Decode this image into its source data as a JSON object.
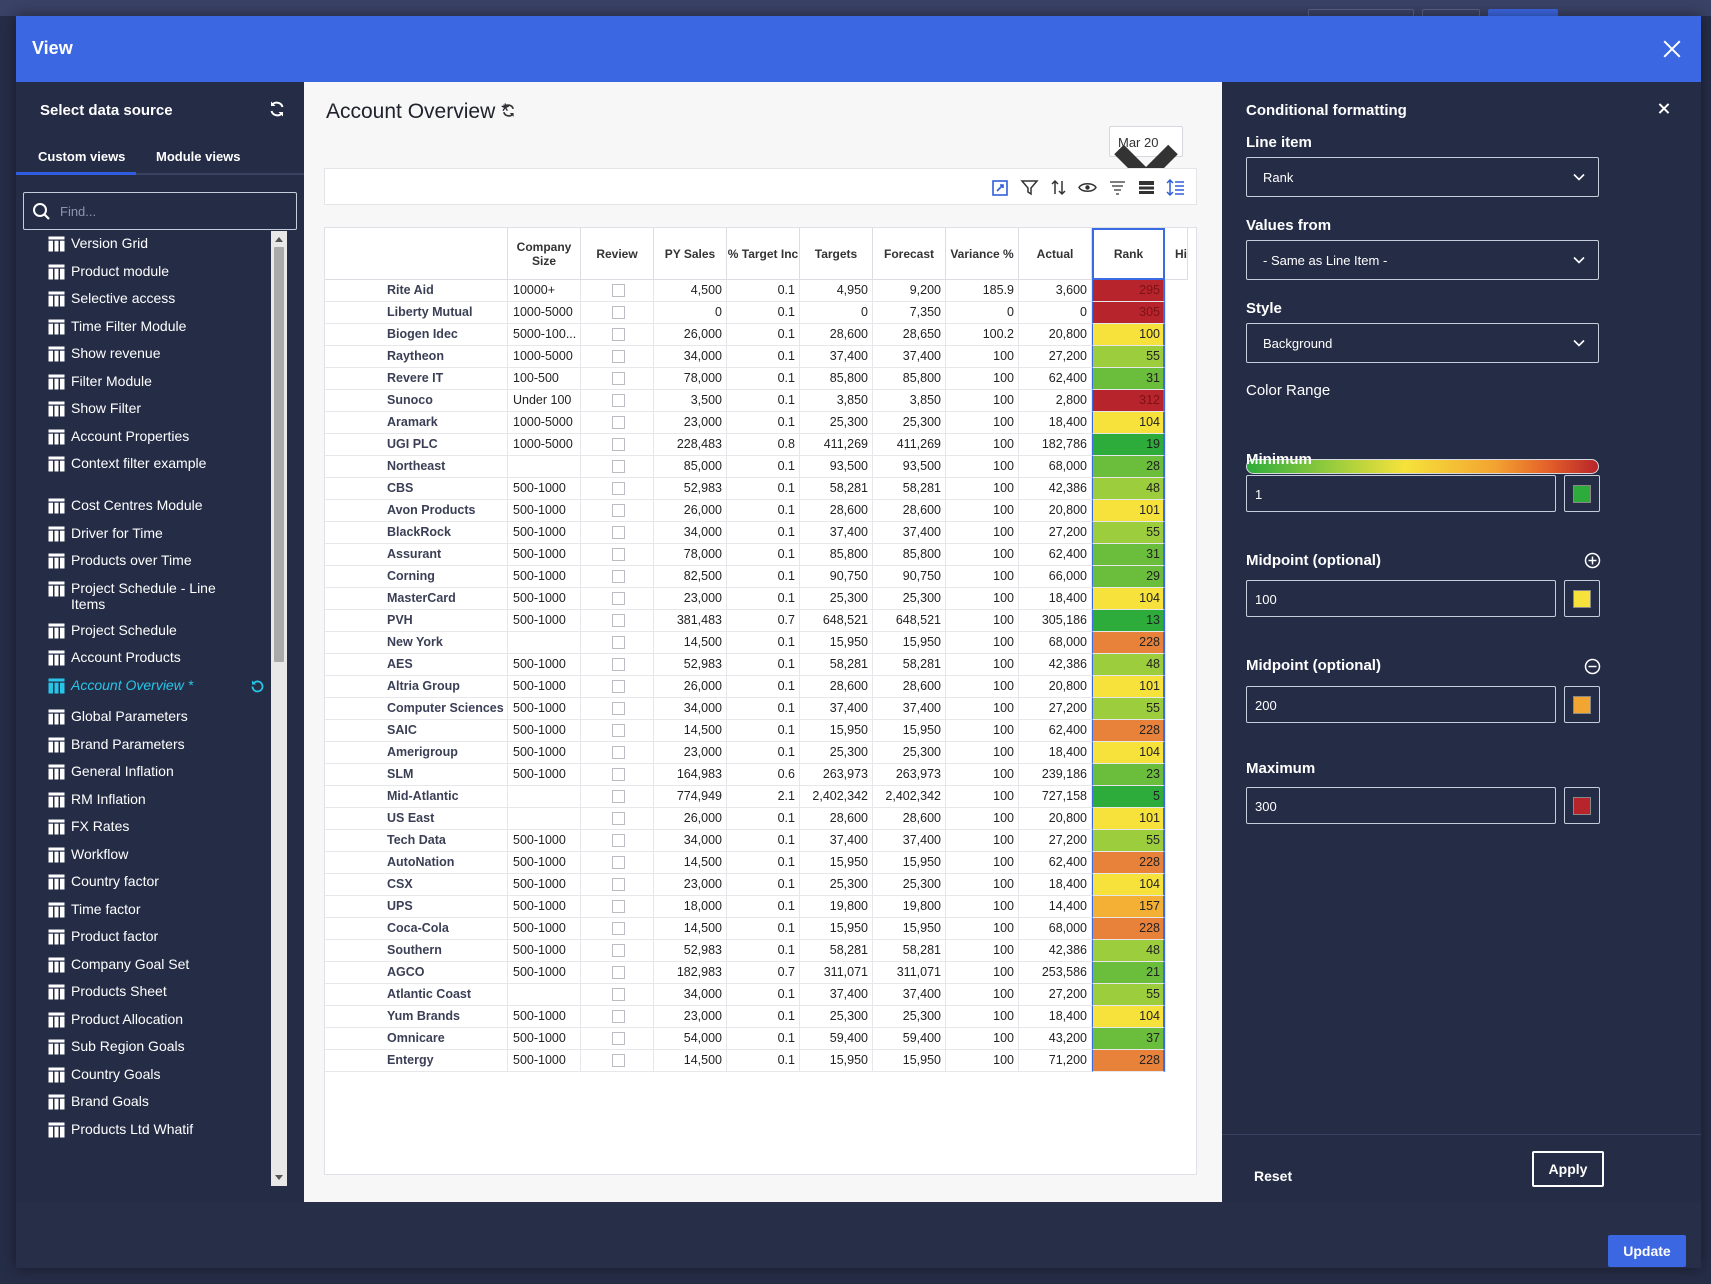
{
  "dialog": {
    "title": "View",
    "update_label": "Update"
  },
  "left": {
    "title": "Select data source",
    "tabs": [
      "Custom views",
      "Module views"
    ],
    "search_placeholder": "Find...",
    "items": [
      "Version Grid",
      "Product module",
      "Selective access",
      "Time Filter Module",
      "Show revenue",
      "Filter Module",
      "Show Filter",
      "Account Properties",
      "Context filter example",
      "Cost Centres Module",
      "Driver for Time",
      "Products over Time",
      "Project Schedule - Line Items",
      "Project Schedule",
      "Account Products",
      "Account Overview *",
      "Global Parameters",
      "Brand Parameters",
      "General Inflation",
      "RM Inflation",
      "FX Rates",
      "Workflow",
      "Country factor",
      "Time factor",
      "Product factor",
      "Company Goal Set",
      "Products Sheet",
      "Product Allocation",
      "Sub Region Goals",
      "Country Goals",
      "Brand Goals",
      "Products Ltd Whatif"
    ],
    "active_index": 15
  },
  "center": {
    "title": "Account Overview *",
    "date": "Mar 20",
    "columns": [
      "Company Size",
      "Review",
      "PY Sales",
      "% Target Inc",
      "Targets",
      "Forecast",
      "Variance %",
      "Actual",
      "Rank",
      "Hi"
    ],
    "rows": [
      [
        "Rite Aid",
        "10000+",
        "4,500",
        "0.1",
        "4,950",
        "9,200",
        "185.9",
        "3,600",
        "295"
      ],
      [
        "Liberty Mutual",
        "1000-5000",
        "0",
        "0.1",
        "0",
        "7,350",
        "0",
        "0",
        "305"
      ],
      [
        "Biogen Idec",
        "5000-100...",
        "26,000",
        "0.1",
        "28,600",
        "28,650",
        "100.2",
        "20,800",
        "100"
      ],
      [
        "Raytheon",
        "1000-5000",
        "34,000",
        "0.1",
        "37,400",
        "37,400",
        "100",
        "27,200",
        "55"
      ],
      [
        "Revere IT",
        "100-500",
        "78,000",
        "0.1",
        "85,800",
        "85,800",
        "100",
        "62,400",
        "31"
      ],
      [
        "Sunoco",
        "Under 100",
        "3,500",
        "0.1",
        "3,850",
        "3,850",
        "100",
        "2,800",
        "312"
      ],
      [
        "Aramark",
        "1000-5000",
        "23,000",
        "0.1",
        "25,300",
        "25,300",
        "100",
        "18,400",
        "104"
      ],
      [
        "UGI PLC",
        "1000-5000",
        "228,483",
        "0.8",
        "411,269",
        "411,269",
        "100",
        "182,786",
        "19"
      ],
      [
        "Northeast",
        "",
        "85,000",
        "0.1",
        "93,500",
        "93,500",
        "100",
        "68,000",
        "28"
      ],
      [
        "CBS",
        "500-1000",
        "52,983",
        "0.1",
        "58,281",
        "58,281",
        "100",
        "42,386",
        "48"
      ],
      [
        "Avon Products",
        "500-1000",
        "26,000",
        "0.1",
        "28,600",
        "28,600",
        "100",
        "20,800",
        "101"
      ],
      [
        "BlackRock",
        "500-1000",
        "34,000",
        "0.1",
        "37,400",
        "37,400",
        "100",
        "27,200",
        "55"
      ],
      [
        "Assurant",
        "500-1000",
        "78,000",
        "0.1",
        "85,800",
        "85,800",
        "100",
        "62,400",
        "31"
      ],
      [
        "Corning",
        "500-1000",
        "82,500",
        "0.1",
        "90,750",
        "90,750",
        "100",
        "66,000",
        "29"
      ],
      [
        "MasterCard",
        "500-1000",
        "23,000",
        "0.1",
        "25,300",
        "25,300",
        "100",
        "18,400",
        "104"
      ],
      [
        "PVH",
        "500-1000",
        "381,483",
        "0.7",
        "648,521",
        "648,521",
        "100",
        "305,186",
        "13"
      ],
      [
        "New York",
        "",
        "14,500",
        "0.1",
        "15,950",
        "15,950",
        "100",
        "68,000",
        "228"
      ],
      [
        "AES",
        "500-1000",
        "52,983",
        "0.1",
        "58,281",
        "58,281",
        "100",
        "42,386",
        "48"
      ],
      [
        "Altria Group",
        "500-1000",
        "26,000",
        "0.1",
        "28,600",
        "28,600",
        "100",
        "20,800",
        "101"
      ],
      [
        "Computer Sciences Ltd",
        "500-1000",
        "34,000",
        "0.1",
        "37,400",
        "37,400",
        "100",
        "27,200",
        "55"
      ],
      [
        "SAIC",
        "500-1000",
        "14,500",
        "0.1",
        "15,950",
        "15,950",
        "100",
        "62,400",
        "228"
      ],
      [
        "Amerigroup",
        "500-1000",
        "23,000",
        "0.1",
        "25,300",
        "25,300",
        "100",
        "18,400",
        "104"
      ],
      [
        "SLM",
        "500-1000",
        "164,983",
        "0.6",
        "263,973",
        "263,973",
        "100",
        "239,186",
        "23"
      ],
      [
        "Mid-Atlantic",
        "",
        "774,949",
        "2.1",
        "2,402,342",
        "2,402,342",
        "100",
        "727,158",
        "5"
      ],
      [
        "US East",
        "",
        "26,000",
        "0.1",
        "28,600",
        "28,600",
        "100",
        "20,800",
        "101"
      ],
      [
        "Tech Data",
        "500-1000",
        "34,000",
        "0.1",
        "37,400",
        "37,400",
        "100",
        "27,200",
        "55"
      ],
      [
        "AutoNation",
        "500-1000",
        "14,500",
        "0.1",
        "15,950",
        "15,950",
        "100",
        "62,400",
        "228"
      ],
      [
        "CSX",
        "500-1000",
        "23,000",
        "0.1",
        "25,300",
        "25,300",
        "100",
        "18,400",
        "104"
      ],
      [
        "UPS",
        "500-1000",
        "18,000",
        "0.1",
        "19,800",
        "19,800",
        "100",
        "14,400",
        "157"
      ],
      [
        "Coca-Cola",
        "500-1000",
        "14,500",
        "0.1",
        "15,950",
        "15,950",
        "100",
        "68,000",
        "228"
      ],
      [
        "Southern",
        "500-1000",
        "52,983",
        "0.1",
        "58,281",
        "58,281",
        "100",
        "42,386",
        "48"
      ],
      [
        "AGCO",
        "500-1000",
        "182,983",
        "0.7",
        "311,071",
        "311,071",
        "100",
        "253,586",
        "21"
      ],
      [
        "Atlantic Coast",
        "",
        "34,000",
        "0.1",
        "37,400",
        "37,400",
        "100",
        "27,200",
        "55"
      ],
      [
        "Yum Brands",
        "500-1000",
        "23,000",
        "0.1",
        "25,300",
        "25,300",
        "100",
        "18,400",
        "104"
      ],
      [
        "Omnicare",
        "500-1000",
        "54,000",
        "0.1",
        "59,400",
        "59,400",
        "100",
        "43,200",
        "37"
      ],
      [
        "Entergy",
        "500-1000",
        "14,500",
        "0.1",
        "15,950",
        "15,950",
        "100",
        "71,200",
        "228"
      ]
    ]
  },
  "right": {
    "title": "Conditional formatting",
    "line_item_label": "Line item",
    "line_item_value": "Rank",
    "values_from_label": "Values from",
    "values_from_value": "- Same as Line Item -",
    "style_label": "Style",
    "style_value": "Background",
    "color_range_label": "Color Range",
    "minimum_label": "Minimum",
    "minimum_value": "1",
    "minimum_color": "#2eac3b",
    "mid1_label": "Midpoint (optional)",
    "mid1_value": "100",
    "mid1_color": "#f6e23b",
    "mid2_label": "Midpoint (optional)",
    "mid2_value": "200",
    "mid2_color": "#f3a531",
    "maximum_label": "Maximum",
    "maximum_value": "300",
    "maximum_color": "#b8242b",
    "reset_label": "Reset",
    "apply_label": "Apply"
  }
}
